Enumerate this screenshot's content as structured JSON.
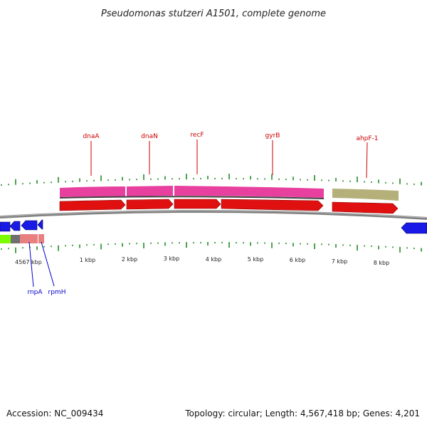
{
  "title": "Pseudomonas stutzeri A1501, complete genome",
  "accession_line": "Accession: NC_009434",
  "summary_line": "Topology: circular; Length: 4,567,418 bp; Genes: 4,201",
  "colors": {
    "backbone": "#808080",
    "tick": "#228b22",
    "cog_pink": "#e8409f",
    "cog_olive": "#b5b07a",
    "gene_forward": "#e01010",
    "gene_reverse": "#1a1ae6",
    "label_forward": "#cc0000",
    "label_reverse": "#0000cc",
    "cog_green": "#7cfc00",
    "cog_gray": "#707070",
    "cog_salmon": "#e88080"
  },
  "tick_labels": [
    "4567 kbp",
    "1 kbp",
    "2 kbp",
    "3 kbp",
    "4 kbp",
    "5 kbp",
    "6 kbp",
    "7 kbp",
    "8 kbp"
  ],
  "forward_gene_labels": [
    "dnaA",
    "dnaN",
    "recF",
    "gyrB",
    "ahpF-1"
  ],
  "reverse_gene_labels": [
    "rnpA",
    "rpmH"
  ]
}
